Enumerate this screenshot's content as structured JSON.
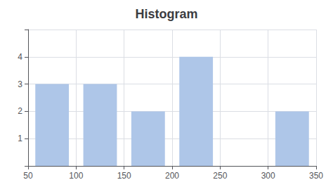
{
  "chart_data": {
    "type": "histogram",
    "title": "Histogram",
    "bins": [
      50,
      100,
      150,
      200,
      250,
      300,
      350
    ],
    "values": [
      3,
      3,
      2,
      4,
      0,
      2
    ],
    "color": "#aec6e8",
    "xlim": [
      50,
      350
    ],
    "xticks": [
      50,
      100,
      150,
      200,
      250,
      300,
      350
    ],
    "ylim": [
      0,
      5
    ],
    "yticks": [
      1,
      2,
      3,
      4
    ],
    "grid": true
  }
}
